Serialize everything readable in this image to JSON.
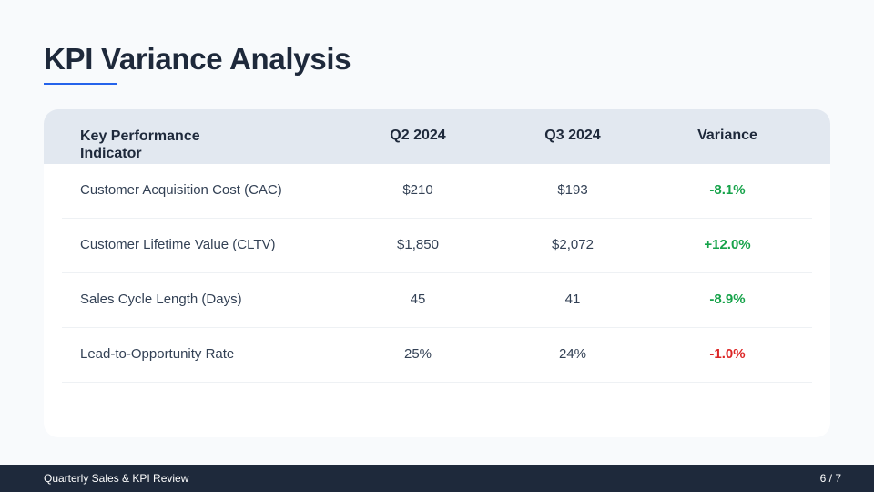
{
  "title": "KPI Variance Analysis",
  "colors": {
    "positive": "#16a34a",
    "negative": "#dc2626",
    "accent": "#2563eb"
  },
  "table": {
    "headers": [
      "Key Performance Indicator",
      "Q2 2024",
      "Q3 2024",
      "Variance"
    ],
    "rows": [
      {
        "kpi": "Customer Acquisition Cost (CAC)",
        "q2": "$210",
        "q3": "$193",
        "variance": "-8.1%",
        "status": "positive"
      },
      {
        "kpi": "Customer Lifetime Value (CLTV)",
        "q2": "$1,850",
        "q3": "$2,072",
        "variance": "+12.0%",
        "status": "positive"
      },
      {
        "kpi": "Sales Cycle Length (Days)",
        "q2": "45",
        "q3": "41",
        "variance": "-8.9%",
        "status": "positive"
      },
      {
        "kpi": "Lead-to-Opportunity Rate",
        "q2": "25%",
        "q3": "24%",
        "variance": "-1.0%",
        "status": "negative"
      }
    ]
  },
  "footer": {
    "left": "Quarterly Sales & KPI Review",
    "page": "6 / 7"
  }
}
